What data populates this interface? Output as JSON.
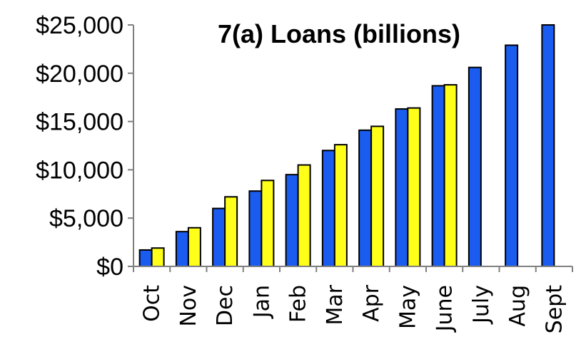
{
  "chart_data": {
    "type": "bar",
    "title": "7(a) Loans (billions)",
    "xlabel": "",
    "ylabel": "",
    "categories": [
      "Oct",
      "Nov",
      "Dec",
      "Jan",
      "Feb",
      "Mar",
      "Apr",
      "May",
      "June",
      "July",
      "Aug",
      "Sept"
    ],
    "series": [
      {
        "color": "#1a5cf0",
        "values": [
          1700,
          3600,
          6000,
          7800,
          9500,
          12000,
          14100,
          16300,
          18700,
          20600,
          22900,
          25000
        ]
      },
      {
        "color": "#ffff19",
        "values": [
          1900,
          4000,
          7200,
          8900,
          10500,
          12600,
          14500,
          16400,
          18800,
          null,
          null,
          null
        ]
      }
    ],
    "ylim": [
      0,
      25000
    ],
    "yticks": [
      0,
      5000,
      10000,
      15000,
      20000,
      25000
    ],
    "ytick_labels": [
      "$0",
      "$5,000",
      "$10,000",
      "$15,000",
      "$20,000",
      "$25,000"
    ],
    "grid": false,
    "legend": "none"
  }
}
